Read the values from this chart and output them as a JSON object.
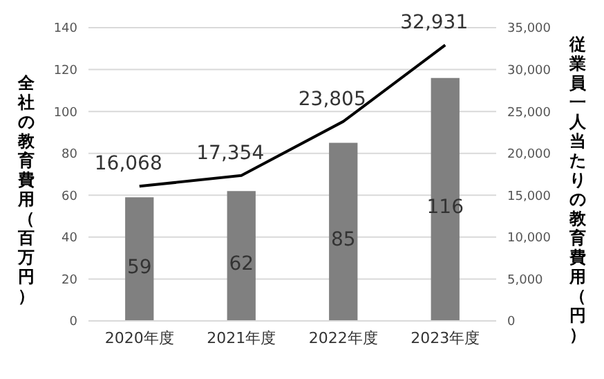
{
  "chart_data": {
    "type": "bar",
    "ylabel": "全社の教育費用（百万円）",
    "y2label": "従業員一人当たりの教育費用（円）",
    "categories": [
      "2020年度",
      "2021年度",
      "2022年度",
      "2023年度"
    ],
    "series": [
      {
        "color": "#808080",
        "values": [
          59,
          62,
          85,
          116
        ]
      },
      {
        "type": "line",
        "axis": "y2",
        "color": "#000000",
        "values": [
          16068,
          17354,
          23805,
          32931
        ],
        "value_labels": [
          "16,068",
          "17,354",
          "23,805",
          "32,931"
        ]
      }
    ],
    "ylim": [
      0,
      140
    ],
    "yticks": [
      0,
      20,
      40,
      60,
      80,
      100,
      120,
      140
    ],
    "y2lim": [
      0,
      35000
    ],
    "y2ticks": [
      {
        "value": 0,
        "label": "0"
      },
      {
        "value": 5000,
        "label": "5,000"
      },
      {
        "value": 10000,
        "label": "10,000"
      },
      {
        "value": 15000,
        "label": "15,000"
      },
      {
        "value": 20000,
        "label": "20,000"
      },
      {
        "value": 25000,
        "label": "25,000"
      },
      {
        "value": 30000,
        "label": "30,000"
      },
      {
        "value": 35000,
        "label": "35,000"
      }
    ],
    "grid": "y",
    "data_labels": true,
    "marker": "none",
    "line_style": "solid"
  }
}
